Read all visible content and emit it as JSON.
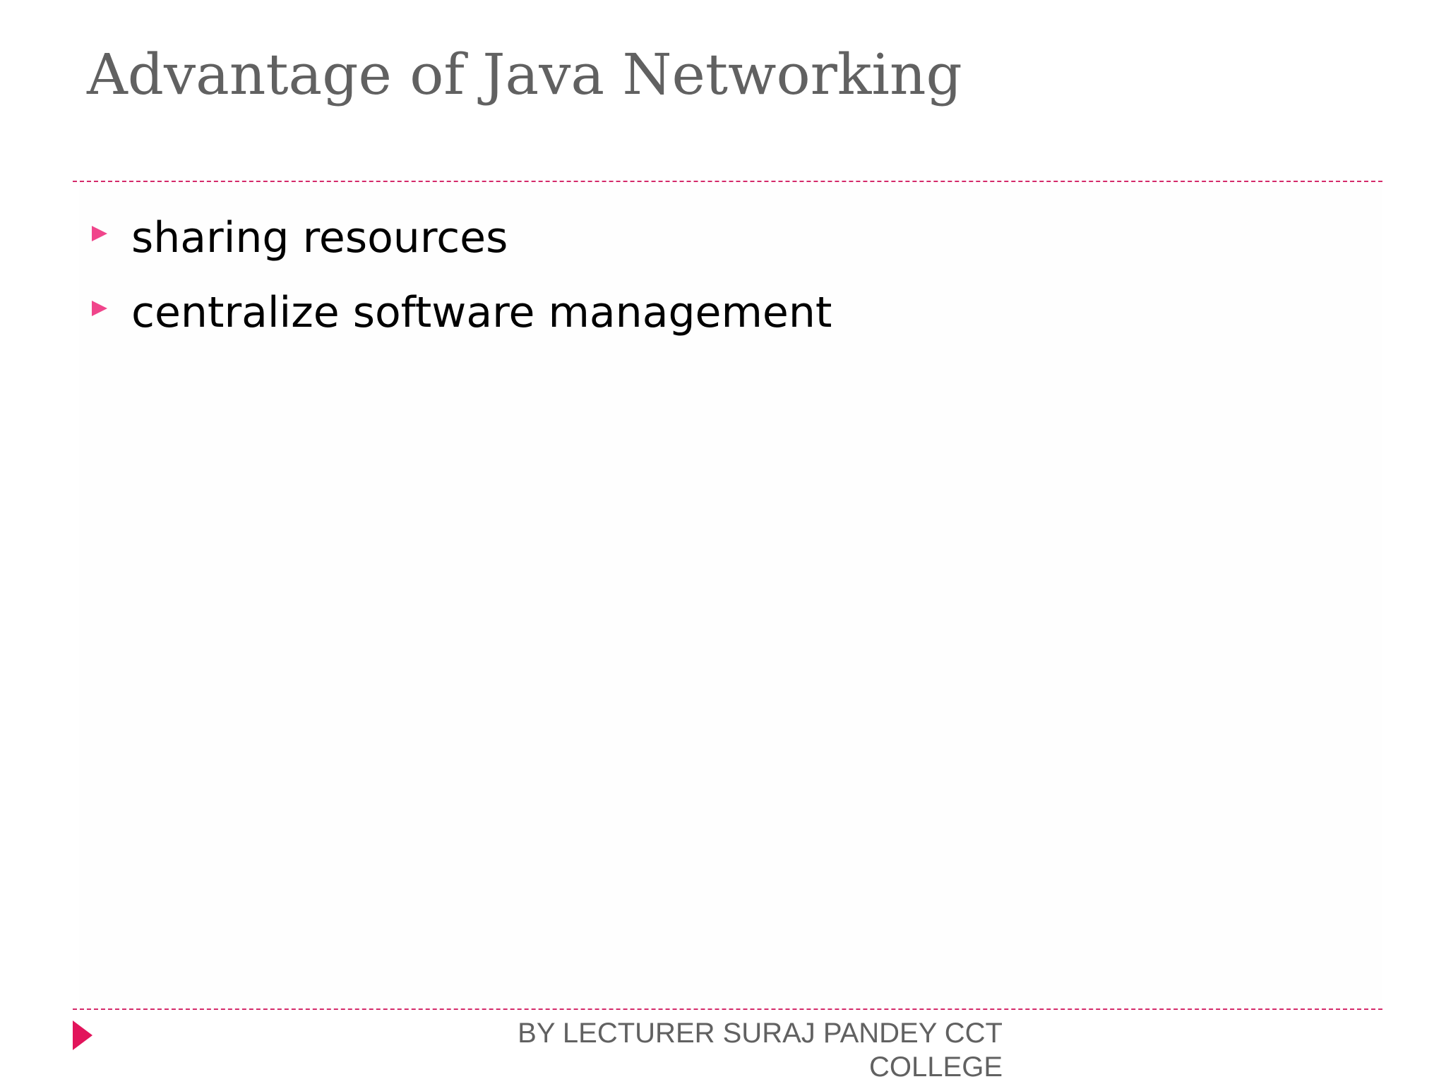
{
  "slide": {
    "title": "Advantage of Java Networking",
    "bullets": [
      "sharing resources",
      "centralize software management"
    ],
    "footer": {
      "line1": "BY LECTURER SURAJ PANDEY CCT",
      "line2": "COLLEGE"
    }
  },
  "colors": {
    "title_text": "#616161",
    "body_text": "#000000",
    "accent_rule": "#d42a6a",
    "bullet_marker": "#f0458b",
    "footer_marker": "#e2145b",
    "footer_text": "#616161"
  },
  "icons": {
    "bullet": "triangle-right-icon",
    "footer": "triangle-right-icon"
  }
}
